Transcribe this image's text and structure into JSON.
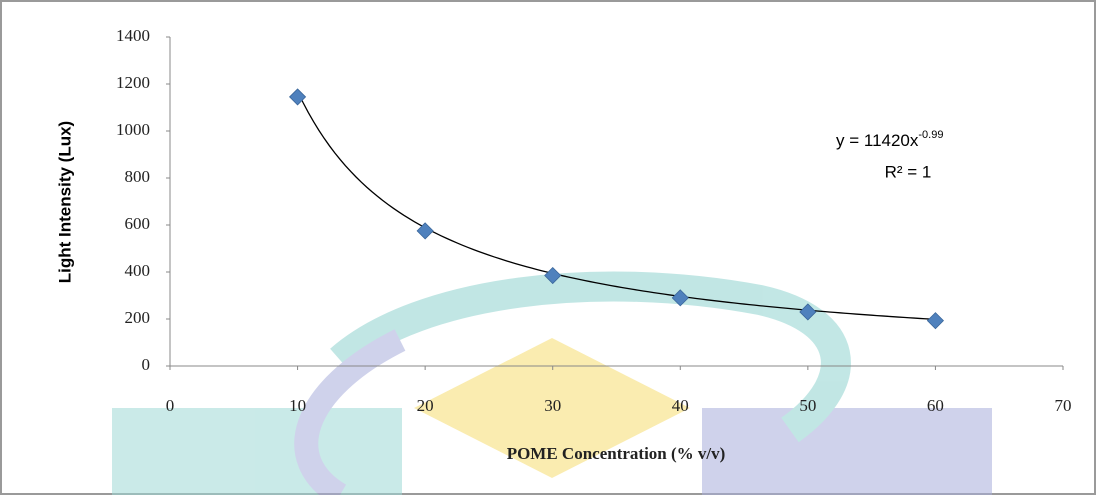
{
  "chart_data": {
    "type": "scatter",
    "x_label": "POME Concentration (% v/v)",
    "y_label": "Light Intensity (Lux)",
    "x": [
      10,
      20,
      30,
      40,
      50,
      60
    ],
    "series": [
      {
        "name": null,
        "color": "#4f81bd",
        "values": [
          1145,
          575,
          385,
          290,
          230,
          193
        ]
      }
    ],
    "xlim": [
      0,
      70
    ],
    "xticks": [
      0,
      10,
      20,
      30,
      40,
      50,
      60,
      70
    ],
    "ylim": [
      0,
      1400
    ],
    "yticks": [
      0,
      200,
      400,
      600,
      800,
      1000,
      1200,
      1400
    ],
    "grid": false,
    "trendline": {
      "kind": "power",
      "a": 11420,
      "b": -0.99,
      "color": "#000000",
      "equation": "y = 11420x",
      "equation_exponent": "-0.99",
      "r_squared_label": "R² = 1"
    }
  }
}
